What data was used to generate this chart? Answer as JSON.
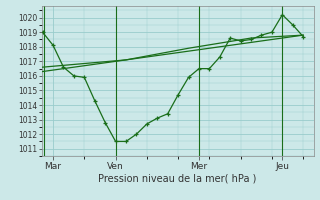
{
  "background_color": "#cce8e8",
  "grid_color": "#99cccc",
  "line_color": "#1a6e1a",
  "marker_color": "#1a6e1a",
  "ylabel_ticks": [
    1011,
    1012,
    1013,
    1014,
    1015,
    1016,
    1017,
    1018,
    1019,
    1020
  ],
  "ylim": [
    1010.5,
    1020.8
  ],
  "xlim": [
    -0.05,
    13.0
  ],
  "xtick_labels": [
    "Mar",
    "Ven",
    "Mer",
    "Jeu"
  ],
  "xtick_positions": [
    0.5,
    3.5,
    7.5,
    11.5
  ],
  "xlabel": "Pression niveau de la mer( hPa )",
  "line1_x": [
    0.0,
    0.5,
    1.0,
    1.5,
    2.0,
    2.5,
    3.0,
    3.5,
    4.0,
    4.5,
    5.0,
    5.5,
    6.0,
    6.5,
    7.0,
    7.5,
    8.0,
    8.5,
    9.0,
    9.5,
    10.0,
    10.5,
    11.0,
    11.5,
    12.0,
    12.5
  ],
  "line1_y": [
    1019.0,
    1018.1,
    1016.6,
    1016.0,
    1015.9,
    1014.3,
    1012.8,
    1011.5,
    1011.5,
    1012.0,
    1012.7,
    1013.1,
    1013.4,
    1014.7,
    1015.9,
    1016.5,
    1016.5,
    1017.3,
    1018.6,
    1018.4,
    1018.5,
    1018.8,
    1019.0,
    1020.2,
    1019.5,
    1018.7
  ],
  "line2_x": [
    0.0,
    4.0,
    7.0,
    10.0,
    12.5
  ],
  "line2_y": [
    1016.6,
    1017.1,
    1017.9,
    1018.6,
    1018.8
  ],
  "line3_x": [
    0.0,
    12.5
  ],
  "line3_y": [
    1016.3,
    1018.8
  ],
  "vline_positions": [
    0.05,
    3.5,
    7.5,
    11.5
  ]
}
